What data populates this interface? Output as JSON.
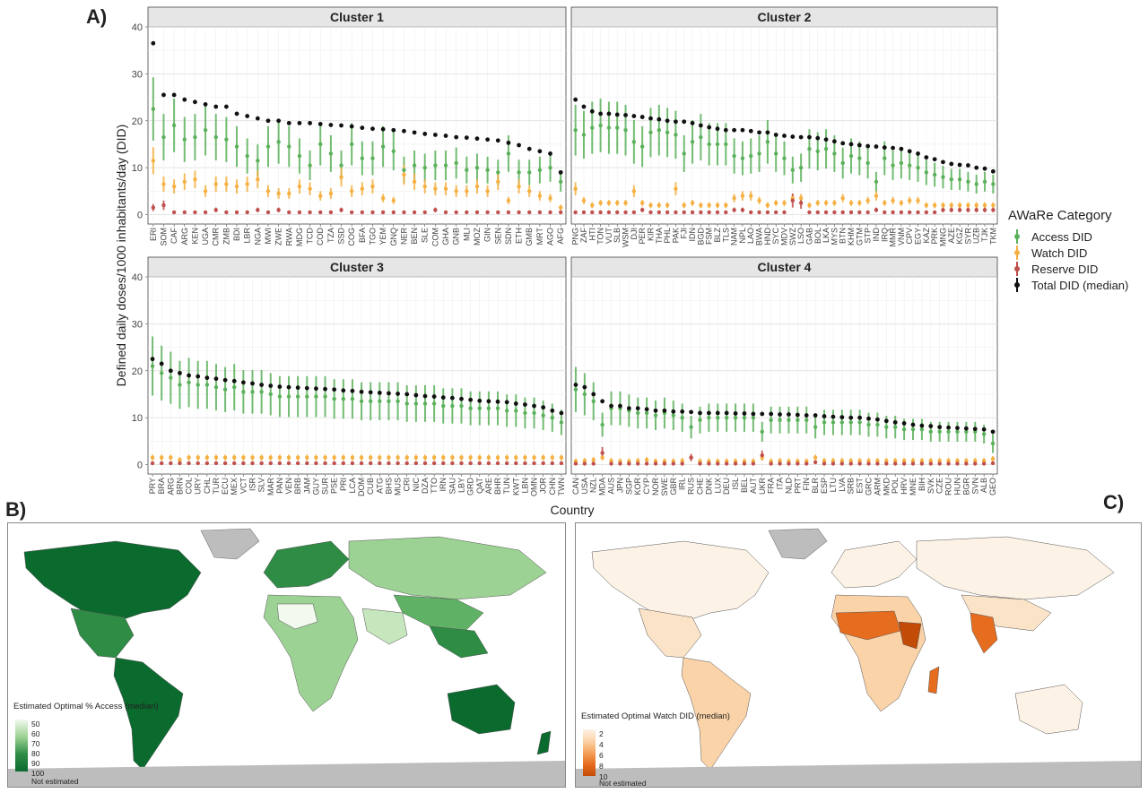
{
  "panel_labels": {
    "a": "A)",
    "b": "B)",
    "c": "C)"
  },
  "chart_data": {
    "type": "scatter",
    "ylabel": "Defined daily doses/1000 inhabitants/day (DID)",
    "xlabel": "Country",
    "ylim": [
      -2,
      40
    ],
    "yticks": [
      0,
      10,
      20,
      30,
      40
    ],
    "legend": {
      "title": "AWaRe Category",
      "placement": "right",
      "items": [
        {
          "label": "Access DID",
          "color": "#5bb15b"
        },
        {
          "label": "Watch DID",
          "color": "#f5b041"
        },
        {
          "label": "Reserve DID",
          "color": "#c0504d"
        },
        {
          "label": "Total DID (median)",
          "color": "#111111"
        }
      ]
    },
    "facets": [
      {
        "title": "Cluster 1",
        "countries": [
          "ERI",
          "SOM",
          "CAF",
          "ARG",
          "KEN",
          "UGA",
          "CMR",
          "ZMB",
          "BDI",
          "LBR",
          "NGA",
          "MWI",
          "ZWE",
          "RWA",
          "MDG",
          "TCD",
          "COD",
          "TZA",
          "SSD",
          "COG",
          "BFA",
          "TGO",
          "YEM",
          "GNQ",
          "NER",
          "BEN",
          "SLE",
          "COM",
          "GHA",
          "GNB",
          "MLI",
          "MOZ",
          "GIN",
          "SEN",
          "SDN",
          "ETH",
          "GMB",
          "MRT",
          "AGO",
          "AFG"
        ],
        "total_median": [
          36.5,
          25.5,
          25.5,
          24.5,
          24,
          23.5,
          23,
          23,
          21.5,
          21,
          20.5,
          20,
          20,
          19.5,
          19.5,
          19.5,
          19.3,
          19.1,
          19,
          18.8,
          18.5,
          18.3,
          18.2,
          18,
          17.8,
          17.5,
          17.2,
          17,
          16.8,
          16.5,
          16.4,
          16.2,
          16,
          15.8,
          15.3,
          14.8,
          14,
          13.5,
          13,
          9
        ],
        "access": [
          22.5,
          16.5,
          19,
          16,
          16.5,
          18,
          16.5,
          16,
          14.5,
          12.5,
          11.5,
          14.5,
          15.5,
          14.5,
          12.5,
          10.5,
          15,
          13,
          10.5,
          15,
          12,
          12,
          14.5,
          13.5,
          9.5,
          10.5,
          10,
          10.5,
          10.5,
          11,
          9.5,
          10,
          9.5,
          9,
          13,
          9,
          9,
          9.5,
          10,
          7
        ],
        "watch": [
          11.5,
          6.5,
          6,
          7,
          7.5,
          5,
          6.5,
          6.5,
          6,
          6.5,
          7.5,
          5,
          4.5,
          4.5,
          6,
          5.5,
          4,
          4.5,
          8,
          5,
          5.5,
          6,
          3.5,
          3,
          8.5,
          7,
          6,
          5.5,
          5.5,
          5,
          5,
          6,
          5,
          7,
          3,
          6,
          5,
          4,
          3.5,
          1.5
        ],
        "reserve": [
          1.5,
          2,
          0.5,
          0.5,
          0.5,
          0.5,
          1,
          0.5,
          0.5,
          0.5,
          1,
          0.5,
          1,
          0.5,
          0.5,
          0.5,
          0.5,
          0.5,
          1,
          0.5,
          0.5,
          0.5,
          0.5,
          0.5,
          0.5,
          0.5,
          0.5,
          1,
          0.5,
          0.5,
          0.5,
          0.5,
          0.5,
          0.5,
          0.5,
          0.5,
          0.5,
          0.5,
          0.5,
          0.5
        ]
      },
      {
        "title": "Cluster 2",
        "countries": [
          "PNG",
          "ZAF",
          "HTI",
          "TON",
          "VUT",
          "SLB",
          "WSM",
          "DJI",
          "PER",
          "KIR",
          "THA",
          "PHL",
          "PAK",
          "FJI",
          "IDN",
          "BGD",
          "FSM",
          "BLZ",
          "TLS",
          "NAM",
          "NPL",
          "LAO",
          "BWA",
          "HND",
          "SYC",
          "MDV",
          "SWZ",
          "LSO",
          "GAB",
          "BOL",
          "LKA",
          "MYS",
          "BTN",
          "KHM",
          "GTM",
          "STP",
          "IND",
          "IRQ",
          "MMR",
          "VNM",
          "CPV",
          "EGY",
          "KAZ",
          "PRK",
          "MNG",
          "AZE",
          "KGZ",
          "SYR",
          "UZB",
          "TJK",
          "TKM"
        ],
        "total_median": [
          24.5,
          23,
          22,
          21.5,
          21.5,
          21.3,
          21.2,
          21,
          20.8,
          20.5,
          20.3,
          20,
          19.8,
          19.8,
          19.5,
          19,
          18.6,
          18.3,
          18,
          18,
          18,
          17.8,
          17.5,
          17.5,
          17,
          16.8,
          16.6,
          16.5,
          16.5,
          16.3,
          16,
          15.6,
          15.2,
          15,
          14.8,
          14.6,
          14.5,
          14.3,
          14.2,
          14,
          13.5,
          13,
          12.2,
          11.8,
          11.2,
          10.8,
          10.6,
          10.5,
          10,
          9.8,
          9.2
        ],
        "access": [
          18,
          17,
          18.5,
          19,
          18.5,
          18.5,
          18,
          15.5,
          14.5,
          17.5,
          18,
          17.5,
          17,
          13,
          15.5,
          16.5,
          15,
          15,
          15,
          12.5,
          12,
          12.5,
          13,
          15.5,
          13,
          12,
          9.5,
          10,
          14,
          13.5,
          14,
          13,
          11,
          12.5,
          12,
          11,
          7,
          12,
          10.5,
          11,
          10.5,
          10,
          9,
          8.5,
          8,
          7.5,
          7.5,
          7,
          6.5,
          7,
          6.5
        ],
        "watch": [
          5.5,
          3,
          2,
          2.5,
          2.5,
          2.5,
          2.5,
          5,
          2.5,
          2,
          2,
          2,
          5.5,
          2,
          2.5,
          2,
          2,
          2,
          2,
          3.5,
          4,
          4,
          3,
          2,
          2.5,
          2.5,
          3.5,
          3.5,
          2,
          2.5,
          2.5,
          2.5,
          3.5,
          2.5,
          2.5,
          3,
          4,
          2.5,
          3,
          2.5,
          3,
          3,
          2,
          2,
          2,
          2,
          2,
          2,
          2,
          2,
          2
        ],
        "reserve": [
          0.5,
          0.5,
          0.5,
          0.5,
          0.5,
          0.5,
          0.5,
          0.5,
          1,
          0.5,
          0.5,
          0.5,
          0.5,
          0.5,
          0.5,
          0.5,
          0.5,
          0.5,
          0.5,
          1,
          1,
          0.5,
          0.5,
          0.5,
          0.5,
          0.5,
          3,
          2.5,
          0.5,
          0.5,
          0.5,
          0.5,
          0.5,
          0.5,
          0.5,
          0.5,
          1,
          0.5,
          0.5,
          0.5,
          0.5,
          0.5,
          0.5,
          0.5,
          1,
          1,
          1,
          1,
          1,
          1,
          1
        ]
      },
      {
        "title": "Cluster 3",
        "countries": [
          "PRY",
          "BRA",
          "ARG",
          "BRN",
          "COL",
          "URY",
          "CHL",
          "TUR",
          "ECU",
          "MEX",
          "VCT",
          "ISR",
          "SLV",
          "MAR",
          "PAN",
          "VEN",
          "BRB",
          "JAM",
          "GUY",
          "SUR",
          "PSE",
          "PRI",
          "LCA",
          "DOM",
          "CUB",
          "ATG",
          "BHS",
          "MUS",
          "CRI",
          "NIC",
          "DZA",
          "TTO",
          "IRN",
          "SAU",
          "LBY",
          "GRD",
          "QAT",
          "ARE",
          "BHR",
          "TUN",
          "KWT",
          "LBN",
          "OMN",
          "JOR",
          "CHN",
          "TWN"
        ],
        "total_median": [
          22.5,
          21.5,
          20,
          19.5,
          19,
          18.8,
          18.5,
          18.3,
          18,
          17.8,
          17.5,
          17.3,
          17,
          16.8,
          16.6,
          16.5,
          16.4,
          16.3,
          16.2,
          16.1,
          16,
          15.8,
          15.7,
          15.5,
          15.4,
          15.3,
          15.2,
          15.1,
          15,
          14.8,
          14.6,
          14.5,
          14.3,
          14.2,
          14,
          13.8,
          13.6,
          13.5,
          13.4,
          13.3,
          13,
          12.8,
          12.5,
          12.2,
          11.5,
          11
        ],
        "access": [
          21,
          19.5,
          18.5,
          17,
          17.5,
          17,
          17,
          16.5,
          16,
          16.5,
          15.5,
          15.5,
          15.5,
          15,
          14.5,
          14.5,
          14.5,
          14.5,
          14.5,
          14.5,
          14,
          14,
          14,
          13.5,
          13.5,
          13.5,
          13.5,
          13.5,
          13,
          13,
          13,
          13,
          12.5,
          12.5,
          12.5,
          12,
          12,
          12,
          12,
          11.5,
          11.5,
          11,
          11,
          10.5,
          10,
          9
        ],
        "watch": [
          1.5,
          1.5,
          1.5,
          1,
          1.5,
          1.5,
          1.5,
          1.5,
          1.5,
          1.5,
          1.5,
          1.5,
          1.5,
          1.5,
          1.5,
          1.5,
          1.5,
          1.5,
          1.5,
          1.5,
          1.5,
          1.5,
          1.5,
          1.5,
          1.5,
          1.5,
          1.5,
          1.5,
          1.5,
          1.5,
          1.5,
          1.5,
          1.5,
          1.5,
          1.5,
          1.5,
          1.5,
          1.5,
          1.5,
          1.5,
          1.5,
          1.5,
          1.5,
          1.5,
          1.5,
          1.5
        ],
        "reserve": [
          0.3,
          0.3,
          0.3,
          0.3,
          0.3,
          0.3,
          0.3,
          0.3,
          0.3,
          0.3,
          0.3,
          0.3,
          0.3,
          0.3,
          0.3,
          0.3,
          0.3,
          0.3,
          0.3,
          0.3,
          0.3,
          0.3,
          0.3,
          0.3,
          0.3,
          0.3,
          0.3,
          0.3,
          0.3,
          0.3,
          0.3,
          0.3,
          0.3,
          0.3,
          0.3,
          0.3,
          0.3,
          0.3,
          0.3,
          0.3,
          0.3,
          0.3,
          0.3,
          0.3,
          0.3,
          0.3
        ]
      },
      {
        "title": "Cluster 4",
        "countries": [
          "CAN",
          "USA",
          "NZL",
          "MDA",
          "AUS",
          "JPN",
          "SGP",
          "KOR",
          "CYP",
          "NOR",
          "SWE",
          "GBR",
          "IRL",
          "RUS",
          "CHE",
          "DNK",
          "LUX",
          "DEU",
          "ISL",
          "BEL",
          "AUT",
          "UKR",
          "FRA",
          "ITA",
          "NLD",
          "PRT",
          "FIN",
          "BLR",
          "ESP",
          "LTU",
          "LVA",
          "SRB",
          "EST",
          "GRC",
          "ARM",
          "MKD",
          "POL",
          "HRV",
          "MNE",
          "BIH",
          "SVK",
          "CZE",
          "ROU",
          "HUN",
          "BGR",
          "SVN",
          "ALB",
          "GEO"
        ],
        "total_median": [
          17,
          16.5,
          15,
          13.5,
          12.5,
          12.5,
          12,
          12,
          11.8,
          11.5,
          11.5,
          11.3,
          11.3,
          11.2,
          11,
          11,
          11,
          11,
          10.9,
          10.9,
          10.8,
          10.8,
          10.8,
          10.7,
          10.7,
          10.6,
          10.5,
          10.5,
          10.3,
          10.2,
          10.1,
          10,
          10,
          9.8,
          9.6,
          9.3,
          9,
          8.8,
          8.5,
          8.3,
          8.2,
          8,
          7.9,
          7.8,
          7.7,
          7.6,
          7.5,
          7
        ],
        "access": [
          16,
          15,
          13.5,
          8.5,
          12,
          12,
          11.5,
          11,
          11,
          10.5,
          11,
          10.5,
          10,
          8,
          9.5,
          10,
          10,
          10,
          10,
          10,
          10,
          7,
          9.5,
          9.5,
          9.5,
          9.5,
          9.5,
          8,
          9,
          9,
          9,
          9,
          9,
          8.5,
          8.5,
          8,
          8,
          7.5,
          7.5,
          7.5,
          7,
          7,
          7,
          7,
          7,
          7,
          6.5,
          4.5
        ],
        "watch": [
          0.7,
          0.8,
          1,
          1.5,
          0.8,
          0.7,
          0.7,
          0.8,
          1,
          0.7,
          0.7,
          0.7,
          0.8,
          1.5,
          0.7,
          0.7,
          0.7,
          0.7,
          0.7,
          0.7,
          0.7,
          1.5,
          0.7,
          0.8,
          0.7,
          0.7,
          0.7,
          1.5,
          0.8,
          0.8,
          0.8,
          0.8,
          0.8,
          0.8,
          0.8,
          0.8,
          0.8,
          0.8,
          0.8,
          0.8,
          0.8,
          0.8,
          0.8,
          0.8,
          0.8,
          0.8,
          0.8,
          1.2
        ],
        "reserve": [
          0.2,
          0.2,
          0.2,
          2.5,
          0.2,
          0.2,
          0.2,
          0.2,
          0.2,
          0.2,
          0.2,
          0.2,
          0.2,
          1.5,
          0.2,
          0.2,
          0.2,
          0.2,
          0.2,
          0.2,
          0.2,
          2,
          0.2,
          0.2,
          0.2,
          0.2,
          0.2,
          0.5,
          0.2,
          0.2,
          0.2,
          0.2,
          0.2,
          0.2,
          0.2,
          0.2,
          0.2,
          0.2,
          0.2,
          0.2,
          0.2,
          0.2,
          0.2,
          0.2,
          0.2,
          0.2,
          0.2,
          0.3
        ]
      }
    ]
  },
  "map_b": {
    "legend_title": "Estimated Optimal % Access (median)",
    "ticks": [
      "50",
      "60",
      "70",
      "80",
      "90",
      "100"
    ],
    "na_label": "Not estimated",
    "colors": [
      "#f2f9ee",
      "#c6e6bd",
      "#9cd293",
      "#5fb165",
      "#2e8c45",
      "#0b6a2e"
    ]
  },
  "map_c": {
    "legend_title": "Estimated Optimal Watch DID (median)",
    "ticks": [
      "2",
      "4",
      "6",
      "8",
      "10"
    ],
    "na_label": "Not estimated",
    "colors": [
      "#fdf2e6",
      "#fbd3a8",
      "#f5a15a",
      "#e66d1f",
      "#c24b08"
    ]
  }
}
